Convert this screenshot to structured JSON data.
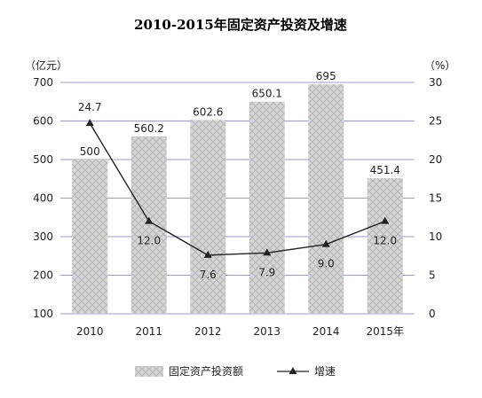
{
  "chart_data": {
    "type": "bar+line",
    "title": "2010-2015年固定资产投资及增速",
    "categories": [
      "2010",
      "2011",
      "2012",
      "2013",
      "2014",
      "2015年"
    ],
    "left_axis": {
      "unit": "（亿元）",
      "min": 100,
      "max": 700,
      "ticks": [
        100,
        200,
        300,
        400,
        500,
        600,
        700
      ]
    },
    "right_axis": {
      "unit": "（%）",
      "min": 0,
      "max": 30,
      "ticks": [
        0,
        5,
        10,
        15,
        20,
        25,
        30
      ]
    },
    "series": [
      {
        "name": "固定资产投资额",
        "type": "bar",
        "axis": "left",
        "values": [
          500,
          560.2,
          602.6,
          650.1,
          695,
          451.4
        ],
        "labels": [
          "500",
          "560.2",
          "602.6",
          "650.1",
          "695",
          "451.4"
        ]
      },
      {
        "name": "增速",
        "type": "line",
        "axis": "right",
        "values": [
          24.7,
          12.0,
          7.6,
          7.9,
          9.0,
          12.0
        ],
        "labels": [
          "24.7",
          "12.0",
          "7.6",
          "7.9",
          "9.0",
          "12.0"
        ]
      }
    ],
    "grid": true,
    "legend": "bottom"
  }
}
